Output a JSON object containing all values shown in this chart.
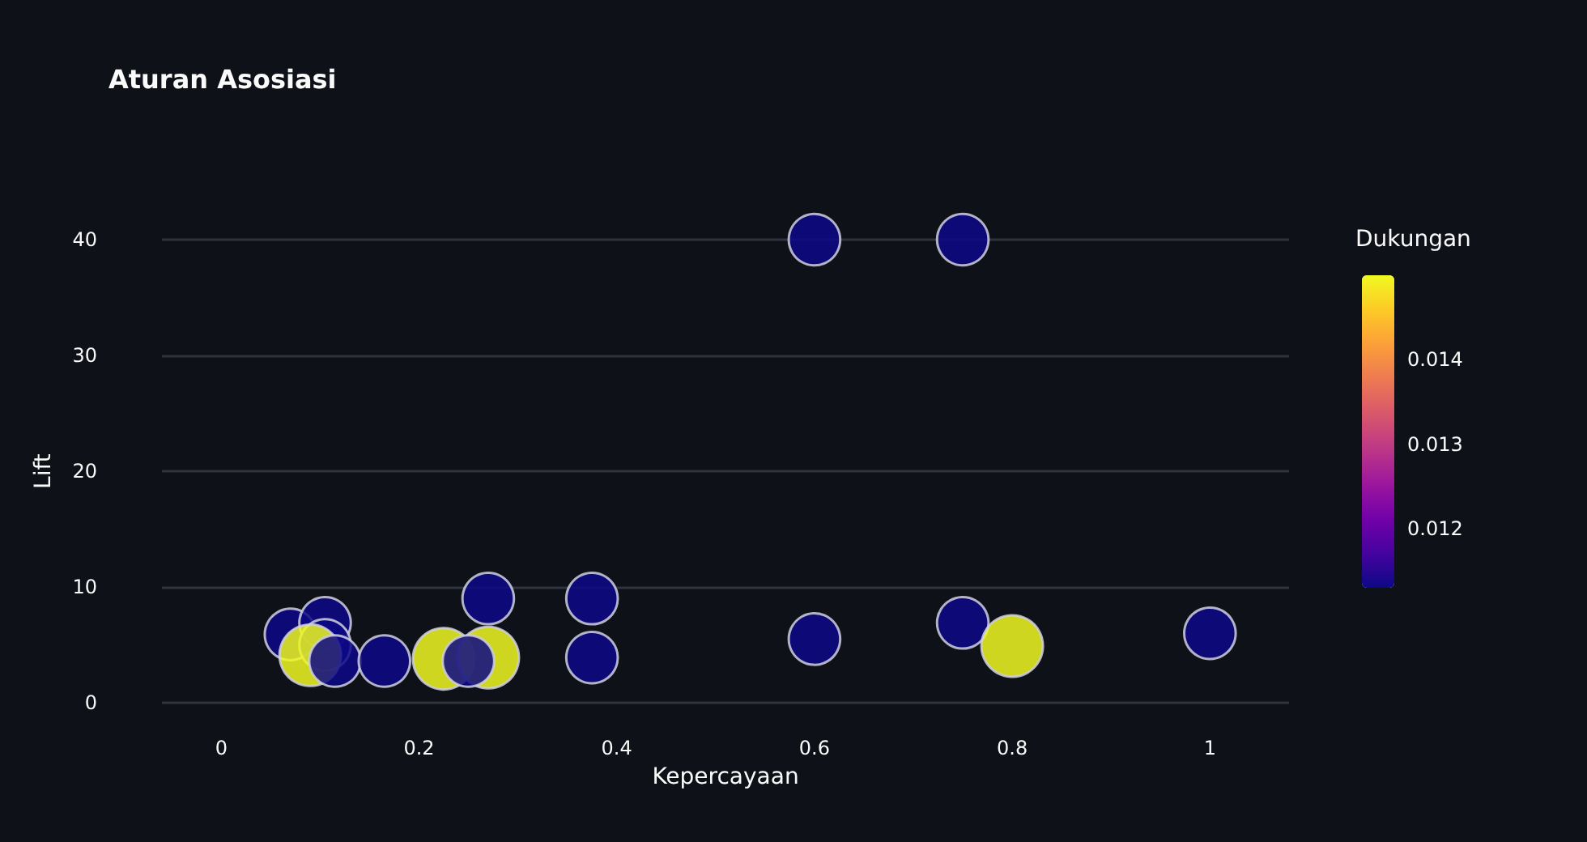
{
  "chart_data": {
    "type": "bubble",
    "title": "Aturan Asosiasi",
    "xlabel": "Kepercayaan",
    "ylabel": "Lift",
    "clabel": "Dukungan",
    "x": [
      0.6,
      0.75,
      0.6,
      0.75,
      1.0,
      0.27,
      0.375,
      0.375,
      0.07,
      0.105,
      0.105,
      0.09,
      0.115,
      0.165,
      0.225,
      0.27,
      0.8,
      0.25
    ],
    "values": [
      40,
      40,
      5.5,
      6.9,
      6,
      9,
      9,
      3.9,
      5.9,
      6.9,
      5,
      4.1,
      3.6,
      3.6,
      3.8,
      3.9,
      4.9,
      3.6
    ],
    "cvalues": [
      0.0113,
      0.0113,
      0.0113,
      0.0113,
      0.0113,
      0.0113,
      0.0113,
      0.0113,
      0.0113,
      0.0113,
      0.0113,
      0.015,
      0.0113,
      0.0113,
      0.015,
      0.015,
      0.015,
      0.0113
    ],
    "sizes": [
      0.7,
      0.7,
      0.7,
      0.7,
      0.7,
      0.7,
      0.7,
      0.7,
      0.7,
      0.7,
      0.7,
      1,
      0.7,
      0.7,
      1,
      1,
      1,
      0.7
    ],
    "xlim": [
      -0.06,
      1.08
    ],
    "xticks": [
      0,
      0.2,
      0.4,
      0.6,
      0.8,
      1
    ],
    "ylim": [
      0,
      40
    ],
    "yticks": [
      0,
      10,
      20,
      30,
      40
    ],
    "clim": [
      0.0113,
      0.015
    ],
    "cticks": [
      0.012,
      0.013,
      0.014
    ],
    "grid": "y",
    "marker": "circle"
  }
}
